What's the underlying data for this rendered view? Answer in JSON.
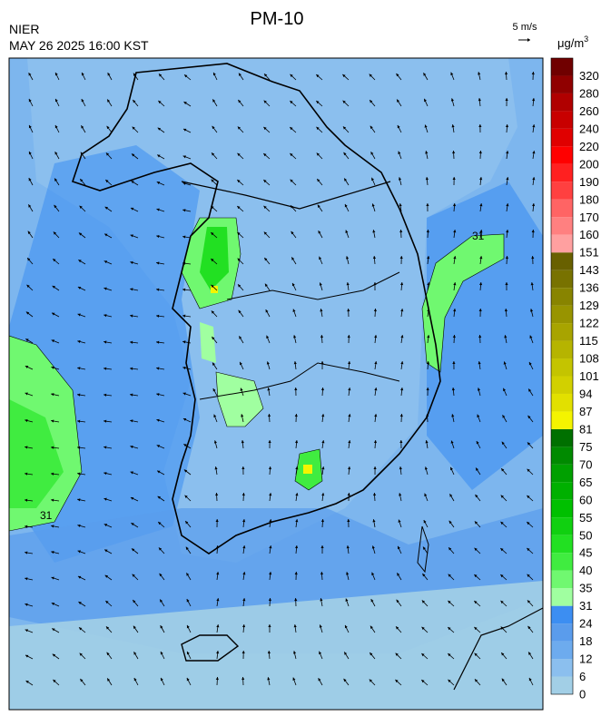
{
  "header": {
    "title": "PM-10",
    "agency": "NIER",
    "datetime": "MAY 26 2025 16:00 KST"
  },
  "wind_scale": {
    "label": "5 m/s"
  },
  "colorbar": {
    "unit": "μg/m",
    "unit_exponent": "3",
    "labels": [
      0,
      6,
      12,
      18,
      24,
      31,
      35,
      40,
      45,
      50,
      55,
      60,
      65,
      70,
      75,
      81,
      87,
      94,
      101,
      108,
      115,
      122,
      129,
      136,
      143,
      151,
      160,
      170,
      180,
      190,
      200,
      220,
      240,
      260,
      280,
      320
    ],
    "colors": [
      "#a2cfe6",
      "#8bbfee",
      "#6dabee",
      "#5a9cec",
      "#3c8ef2",
      "#a0ffa0",
      "#70f870",
      "#40ec40",
      "#22e022",
      "#10d010",
      "#00c000",
      "#00b000",
      "#00a000",
      "#008a00",
      "#007000",
      "#f4f400",
      "#e2e000",
      "#d2d000",
      "#c4c400",
      "#b6b400",
      "#a8a400",
      "#989400",
      "#888400",
      "#787200",
      "#686000",
      "#ffa0a0",
      "#ff8080",
      "#ff6464",
      "#ff4040",
      "#ff2020",
      "#ff0000",
      "#e00000",
      "#c80000",
      "#b00000",
      "#900000",
      "#700000"
    ]
  },
  "map": {
    "contour_labels": [
      "31",
      "31"
    ]
  }
}
